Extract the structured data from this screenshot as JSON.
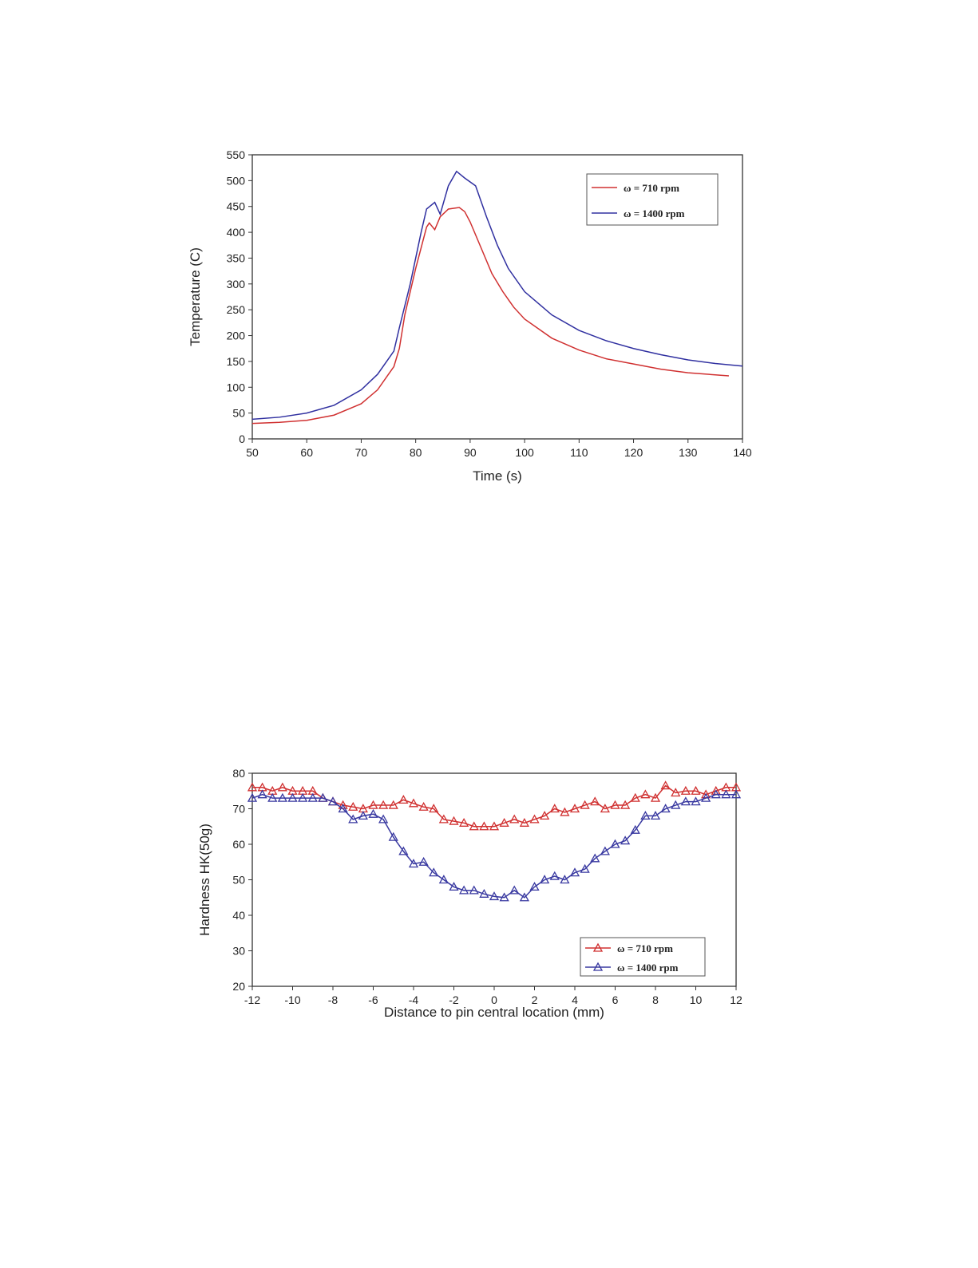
{
  "chart_data": [
    {
      "type": "line",
      "xlabel": "Time (s)",
      "ylabel": "Temperature (C)",
      "xlim": [
        50,
        140
      ],
      "ylim": [
        0,
        550
      ],
      "xticks": [
        50,
        60,
        70,
        80,
        90,
        100,
        110,
        120,
        130,
        140
      ],
      "yticks": [
        0,
        50,
        100,
        150,
        200,
        250,
        300,
        350,
        400,
        450,
        500,
        550
      ],
      "grid": false,
      "legend": "top-right",
      "series": [
        {
          "name": "ω = 710 rpm",
          "color": "#d03030",
          "x": [
            50,
            55,
            60,
            65,
            70,
            73,
            75,
            76,
            77,
            78,
            80,
            82,
            82.5,
            83.5,
            84.5,
            86,
            88,
            89,
            90,
            92,
            94,
            96,
            98,
            100,
            105,
            110,
            115,
            120,
            125,
            130,
            137.5
          ],
          "y": [
            30,
            32,
            36,
            46,
            68,
            95,
            125,
            140,
            175,
            240,
            330,
            410,
            418,
            405,
            430,
            445,
            448,
            440,
            420,
            370,
            320,
            285,
            255,
            232,
            195,
            172,
            155,
            145,
            135,
            128,
            122
          ]
        },
        {
          "name": "ω = 1400 rpm",
          "color": "#3030a0",
          "x": [
            50,
            55,
            60,
            65,
            70,
            73,
            75,
            76,
            77,
            79,
            81,
            82,
            83.5,
            84.5,
            86,
            87.5,
            89,
            91,
            93,
            95,
            97,
            100,
            105,
            110,
            115,
            120,
            125,
            130,
            135,
            140
          ],
          "y": [
            38,
            42,
            50,
            65,
            95,
            125,
            155,
            170,
            215,
            300,
            400,
            445,
            458,
            435,
            490,
            518,
            505,
            490,
            430,
            375,
            330,
            285,
            240,
            210,
            190,
            175,
            163,
            153,
            146,
            141
          ]
        }
      ]
    },
    {
      "type": "line",
      "xlabel": "Distance to pin central location (mm)",
      "ylabel": "Hardness HK(50g)",
      "xlim": [
        -12,
        12
      ],
      "ylim": [
        20,
        80
      ],
      "xticks": [
        -12,
        -10,
        -8,
        -6,
        -4,
        -2,
        0,
        2,
        4,
        6,
        8,
        10,
        12
      ],
      "yticks": [
        20,
        30,
        40,
        50,
        60,
        70,
        80
      ],
      "grid": false,
      "legend": "bottom-right",
      "markers": "triangle",
      "x": [
        -12,
        -11.5,
        -11,
        -10.5,
        -10,
        -9.5,
        -9,
        -8.5,
        -8,
        -7.5,
        -7,
        -6.5,
        -6,
        -5.5,
        -5,
        -4.5,
        -4,
        -3.5,
        -3,
        -2.5,
        -2,
        -1.5,
        -1,
        -0.5,
        0,
        0.5,
        1,
        1.5,
        2,
        2.5,
        3,
        3.5,
        4,
        4.5,
        5,
        5.5,
        6,
        6.5,
        7,
        7.5,
        8,
        8.5,
        9,
        9.5,
        10,
        10.5,
        11,
        11.5,
        12
      ],
      "series": [
        {
          "name": "ω = 710 rpm",
          "color": "#d03030",
          "values": [
            76,
            76,
            75,
            76,
            75,
            75,
            75,
            73,
            72,
            71,
            70.5,
            70,
            71,
            71,
            71,
            72.5,
            71.5,
            70.5,
            70,
            67,
            66.5,
            66,
            65,
            65,
            65,
            66,
            67,
            66,
            67,
            68,
            70,
            69,
            70,
            71,
            72,
            70,
            71,
            71,
            73,
            74,
            73,
            76.5,
            74.5,
            75,
            75,
            74,
            75,
            76,
            76
          ]
        },
        {
          "name": "ω = 1400 rpm",
          "color": "#3838a0",
          "values": [
            73,
            74,
            73,
            73,
            73,
            73,
            73,
            73,
            72,
            70,
            67,
            68,
            68.5,
            67,
            62,
            58,
            54.5,
            55,
            52,
            50,
            48,
            47,
            47,
            46,
            45.3,
            45,
            47,
            45,
            48,
            50,
            51,
            50,
            52,
            53,
            56,
            58,
            60,
            61,
            64,
            68,
            68,
            70,
            71,
            72,
            72,
            73,
            74,
            74,
            74
          ]
        }
      ]
    }
  ]
}
